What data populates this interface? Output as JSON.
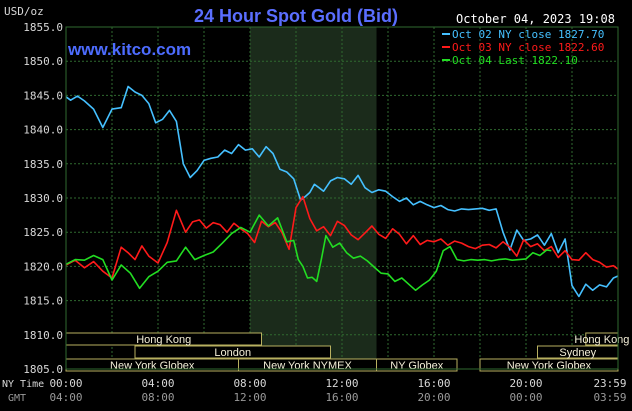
{
  "chart_data": {
    "type": "line",
    "title": "24 Hour Spot Gold (Bid)",
    "watermark": "www.kitco.com",
    "timestamp": "October 04, 2023 19:08",
    "ylabel": "USD/oz",
    "ylim": [
      1805.0,
      1855.0
    ],
    "yticks": [
      "1855.0",
      "1850.0",
      "1845.0",
      "1840.0",
      "1835.0",
      "1830.0",
      "1825.0",
      "1820.0",
      "1815.0",
      "1810.0",
      "1805.0"
    ],
    "xlim": [
      0,
      24
    ],
    "x_ticks_ny": [
      "00:00",
      "04:00",
      "08:00",
      "12:00",
      "16:00",
      "20:00",
      "23:59"
    ],
    "x_ticks_gmt": [
      "04:00",
      "08:00",
      "12:00",
      "16:00",
      "20:00",
      "00:00",
      "03:59"
    ],
    "x_row_labels": {
      "ny": "NY Time",
      "gmt": "GMT"
    },
    "highlight_window_hours": [
      8.0,
      13.5
    ],
    "grid": true,
    "legend_position": "top-right",
    "colors": {
      "background": "#000000",
      "grid": "#2f6a2f",
      "title": "#5a6eff",
      "watermark": "#4d6cff",
      "text": "#ffffff",
      "axis_text": "#d8d8d8",
      "gmt_text": "#9a9a9a",
      "highlight": "#1b2b1b",
      "session_box": "#b8b060",
      "session_text": "#f4efd8"
    },
    "series": [
      {
        "name": "Oct 02 NY close 1827.70",
        "color": "#45c0ff",
        "x": [
          0.0,
          0.2,
          0.5,
          0.8,
          1.2,
          1.6,
          2.0,
          2.4,
          2.7,
          3.0,
          3.3,
          3.6,
          3.9,
          4.2,
          4.5,
          4.8,
          5.1,
          5.4,
          5.7,
          6.0,
          6.3,
          6.6,
          6.9,
          7.2,
          7.5,
          7.8,
          8.1,
          8.4,
          8.7,
          9.0,
          9.3,
          9.6,
          9.9,
          10.2,
          10.4,
          10.6,
          10.8,
          11.0,
          11.2,
          11.5,
          11.8,
          12.1,
          12.4,
          12.7,
          13.0,
          13.3,
          13.6,
          13.9,
          14.2,
          14.5,
          14.8,
          15.1,
          15.4,
          15.7,
          16.0,
          16.3,
          16.6,
          16.9,
          17.2,
          17.5,
          17.8,
          18.1,
          18.4,
          18.7,
          19.0,
          19.3,
          19.6,
          19.9,
          20.2,
          20.5,
          20.8,
          21.1,
          21.4,
          21.7,
          22.0,
          22.3,
          22.6,
          22.9,
          23.2,
          23.5,
          23.8,
          24.0
        ],
        "values": [
          1844.8,
          1844.3,
          1844.9,
          1844.2,
          1843.0,
          1840.3,
          1843.0,
          1843.2,
          1846.3,
          1845.5,
          1845.0,
          1843.8,
          1841.0,
          1841.5,
          1842.8,
          1841.2,
          1835.0,
          1833.0,
          1834.0,
          1835.5,
          1835.8,
          1836.0,
          1837.0,
          1836.5,
          1837.8,
          1837.0,
          1837.2,
          1836.0,
          1837.5,
          1836.5,
          1834.2,
          1833.8,
          1832.8,
          1829.7,
          1830.2,
          1830.8,
          1832.0,
          1831.5,
          1831.0,
          1832.5,
          1833.0,
          1832.8,
          1832.0,
          1833.3,
          1831.5,
          1830.8,
          1831.2,
          1831.0,
          1830.2,
          1829.5,
          1830.0,
          1829.0,
          1829.5,
          1829.0,
          1828.6,
          1828.9,
          1828.3,
          1828.1,
          1828.4,
          1828.3,
          1828.4,
          1828.5,
          1828.2,
          1828.4,
          1825.0,
          1822.4,
          1825.3,
          1823.8,
          1824.0,
          1824.6,
          1823.1,
          1824.8,
          1822.0,
          1824.0,
          1817.2,
          1815.6,
          1817.4,
          1816.5,
          1817.3,
          1817.0,
          1818.3,
          1818.6
        ]
      },
      {
        "name": "Oct 03 NY close 1822.60",
        "color": "#ff1a1a",
        "x": [
          0.0,
          0.4,
          0.8,
          1.2,
          1.6,
          2.0,
          2.4,
          2.7,
          3.0,
          3.3,
          3.6,
          4.0,
          4.4,
          4.8,
          5.2,
          5.5,
          5.8,
          6.1,
          6.4,
          6.7,
          7.0,
          7.3,
          7.6,
          7.9,
          8.2,
          8.5,
          8.8,
          9.1,
          9.4,
          9.7,
          10.0,
          10.3,
          10.6,
          10.9,
          11.2,
          11.5,
          11.8,
          12.1,
          12.4,
          12.7,
          13.0,
          13.3,
          13.6,
          13.9,
          14.2,
          14.5,
          14.8,
          15.1,
          15.4,
          15.7,
          16.0,
          16.3,
          16.6,
          16.9,
          17.2,
          17.5,
          17.8,
          18.1,
          18.4,
          18.7,
          19.0,
          19.3,
          19.6,
          19.9,
          20.2,
          20.5,
          20.8,
          21.1,
          21.4,
          21.7,
          22.0,
          22.3,
          22.6,
          22.9,
          23.2,
          23.5,
          23.8,
          24.0
        ],
        "values": [
          1820.2,
          1820.9,
          1819.8,
          1820.7,
          1819.3,
          1818.3,
          1822.8,
          1822.0,
          1821.0,
          1823.0,
          1821.5,
          1820.5,
          1823.5,
          1828.2,
          1825.0,
          1826.5,
          1826.8,
          1825.6,
          1826.4,
          1826.1,
          1825.0,
          1826.3,
          1825.5,
          1824.8,
          1823.5,
          1826.6,
          1825.8,
          1826.4,
          1824.9,
          1822.5,
          1828.6,
          1830.2,
          1827.0,
          1825.2,
          1825.8,
          1824.5,
          1826.6,
          1826.0,
          1824.6,
          1823.9,
          1824.9,
          1825.9,
          1824.7,
          1824.1,
          1825.5,
          1824.7,
          1823.3,
          1824.5,
          1823.2,
          1823.8,
          1823.6,
          1824.0,
          1823.1,
          1823.7,
          1823.4,
          1822.9,
          1822.6,
          1823.1,
          1823.2,
          1822.7,
          1823.6,
          1822.8,
          1821.5,
          1823.9,
          1822.9,
          1823.3,
          1822.3,
          1822.9,
          1821.3,
          1822.3,
          1821.0,
          1820.9,
          1822.0,
          1821.0,
          1820.6,
          1819.9,
          1820.1,
          1819.6
        ]
      },
      {
        "name": "Oct 04 Last 1822.10",
        "color": "#22dd22",
        "x": [
          0.0,
          0.4,
          0.8,
          1.2,
          1.6,
          2.0,
          2.4,
          2.8,
          3.2,
          3.6,
          4.0,
          4.4,
          4.8,
          5.2,
          5.6,
          6.0,
          6.4,
          6.8,
          7.2,
          7.6,
          8.0,
          8.4,
          8.8,
          9.2,
          9.6,
          9.9,
          10.1,
          10.3,
          10.5,
          10.7,
          10.9,
          11.1,
          11.3,
          11.6,
          11.9,
          12.2,
          12.5,
          12.8,
          13.1,
          13.4,
          13.7,
          14.0,
          14.3,
          14.6,
          14.9,
          15.2,
          15.5,
          15.8,
          16.1,
          16.4,
          16.7,
          17.0,
          17.3,
          17.6,
          17.9,
          18.2,
          18.5,
          18.8,
          19.1,
          19.4,
          19.7,
          20.0,
          20.3,
          20.6,
          20.9,
          21.1
        ],
        "values": [
          1820.3,
          1821.0,
          1820.9,
          1821.6,
          1821.0,
          1818.0,
          1820.2,
          1819.0,
          1816.8,
          1818.5,
          1819.3,
          1820.6,
          1820.8,
          1822.8,
          1821.0,
          1821.6,
          1822.1,
          1823.4,
          1824.8,
          1825.7,
          1825.0,
          1827.5,
          1825.9,
          1827.1,
          1823.6,
          1823.8,
          1821.0,
          1820.0,
          1818.3,
          1818.4,
          1817.8,
          1821.0,
          1824.5,
          1822.8,
          1823.4,
          1822.0,
          1821.2,
          1821.5,
          1820.8,
          1819.9,
          1819.0,
          1818.9,
          1817.8,
          1818.3,
          1817.4,
          1816.5,
          1817.3,
          1818.0,
          1819.3,
          1822.3,
          1822.9,
          1821.0,
          1820.8,
          1821.0,
          1820.9,
          1821.0,
          1820.8,
          1821.0,
          1821.1,
          1820.9,
          1821.0,
          1821.1,
          1822.0,
          1821.6,
          1822.4,
          1822.3
        ]
      }
    ],
    "sessions": [
      {
        "label": "Hong Kong",
        "start": 0.0,
        "end": 8.5,
        "row": 0
      },
      {
        "label": "Hong Kong",
        "start": 22.6,
        "end": 24.0,
        "row": 0
      },
      {
        "label": "London",
        "start": 3.0,
        "end": 11.5,
        "row": 1
      },
      {
        "label": "Sydney",
        "start": 20.5,
        "end": 24.0,
        "row": 1
      },
      {
        "label": "New York Globex",
        "start": 0.0,
        "end": 7.5,
        "row": 2
      },
      {
        "label": "New York NYMEX",
        "start": 7.5,
        "end": 13.5,
        "row": 2
      },
      {
        "label": "NY Globex",
        "start": 13.5,
        "end": 17.0,
        "row": 2
      },
      {
        "label": "New York Globex",
        "start": 18.0,
        "end": 24.0,
        "row": 2
      }
    ]
  }
}
